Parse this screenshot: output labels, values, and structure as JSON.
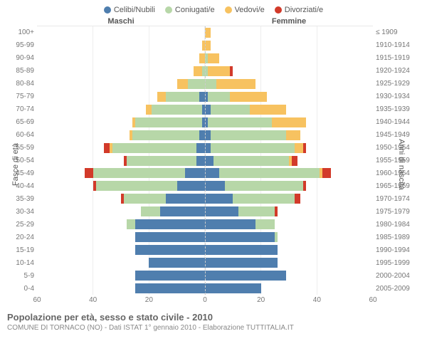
{
  "chart": {
    "type": "population-pyramid",
    "legend": [
      {
        "label": "Celibi/Nubili",
        "color": "#4f7eae"
      },
      {
        "label": "Coniugati/e",
        "color": "#b7d7a8"
      },
      {
        "label": "Vedovi/e",
        "color": "#f7c260"
      },
      {
        "label": "Divorziati/e",
        "color": "#d23a2a"
      }
    ],
    "headers": {
      "male": "Maschi",
      "female": "Femmine"
    },
    "axis_labels": {
      "left": "Fasce di età",
      "right": "Anni di nascita"
    },
    "xmax": 60,
    "xticks_male": [
      60,
      40,
      20,
      0
    ],
    "xticks_female": [
      20,
      40,
      60
    ],
    "background": "#ffffff",
    "gridline_color": "#eeeeee",
    "centerline_color": "#cccccc",
    "bar_opacity": 1,
    "age_groups": [
      "100+",
      "95-99",
      "90-94",
      "85-89",
      "80-84",
      "75-79",
      "70-74",
      "65-69",
      "60-64",
      "55-59",
      "50-54",
      "45-49",
      "40-44",
      "35-39",
      "30-34",
      "25-29",
      "20-24",
      "15-19",
      "10-14",
      "5-9",
      "0-4"
    ],
    "birth_years": [
      "≤ 1909",
      "1910-1914",
      "1915-1919",
      "1920-1924",
      "1925-1929",
      "1930-1934",
      "1935-1939",
      "1940-1944",
      "1945-1949",
      "1950-1954",
      "1955-1959",
      "1960-1964",
      "1965-1969",
      "1970-1974",
      "1975-1979",
      "1980-1984",
      "1985-1989",
      "1990-1994",
      "1995-1999",
      "2000-2004",
      "2005-2009"
    ],
    "data": [
      {
        "m": [
          0,
          0,
          0,
          0
        ],
        "f": [
          0,
          0,
          2,
          0
        ]
      },
      {
        "m": [
          0,
          0,
          1,
          0
        ],
        "f": [
          0,
          0,
          2,
          0
        ]
      },
      {
        "m": [
          0,
          0,
          2,
          0
        ],
        "f": [
          0,
          1,
          4,
          0
        ]
      },
      {
        "m": [
          0,
          1,
          3,
          0
        ],
        "f": [
          0,
          1,
          8,
          1
        ]
      },
      {
        "m": [
          0,
          6,
          4,
          0
        ],
        "f": [
          0,
          4,
          14,
          0
        ]
      },
      {
        "m": [
          2,
          12,
          3,
          0
        ],
        "f": [
          1,
          8,
          13,
          0
        ]
      },
      {
        "m": [
          1,
          18,
          2,
          0
        ],
        "f": [
          2,
          14,
          13,
          0
        ]
      },
      {
        "m": [
          1,
          24,
          1,
          0
        ],
        "f": [
          1,
          23,
          12,
          0
        ]
      },
      {
        "m": [
          2,
          24,
          1,
          0
        ],
        "f": [
          2,
          27,
          5,
          0
        ]
      },
      {
        "m": [
          3,
          30,
          1,
          2
        ],
        "f": [
          2,
          30,
          3,
          1
        ]
      },
      {
        "m": [
          3,
          25,
          0,
          1
        ],
        "f": [
          3,
          27,
          1,
          2
        ]
      },
      {
        "m": [
          7,
          33,
          0,
          3
        ],
        "f": [
          5,
          36,
          1,
          3
        ]
      },
      {
        "m": [
          10,
          29,
          0,
          1
        ],
        "f": [
          7,
          28,
          0,
          1
        ]
      },
      {
        "m": [
          14,
          15,
          0,
          1
        ],
        "f": [
          10,
          22,
          0,
          2
        ]
      },
      {
        "m": [
          16,
          7,
          0,
          0
        ],
        "f": [
          12,
          13,
          0,
          1
        ]
      },
      {
        "m": [
          25,
          3,
          0,
          0
        ],
        "f": [
          18,
          7,
          0,
          0
        ]
      },
      {
        "m": [
          25,
          0,
          0,
          0
        ],
        "f": [
          25,
          1,
          0,
          0
        ]
      },
      {
        "m": [
          25,
          0,
          0,
          0
        ],
        "f": [
          26,
          0,
          0,
          0
        ]
      },
      {
        "m": [
          20,
          0,
          0,
          0
        ],
        "f": [
          26,
          0,
          0,
          0
        ]
      },
      {
        "m": [
          25,
          0,
          0,
          0
        ],
        "f": [
          29,
          0,
          0,
          0
        ]
      },
      {
        "m": [
          25,
          0,
          0,
          0
        ],
        "f": [
          20,
          0,
          0,
          0
        ]
      }
    ],
    "title": "Popolazione per età, sesso e stato civile - 2010",
    "subtitle": "COMUNE DI TORNACO (NO) - Dati ISTAT 1° gennaio 2010 - Elaborazione TUTTITALIA.IT"
  }
}
